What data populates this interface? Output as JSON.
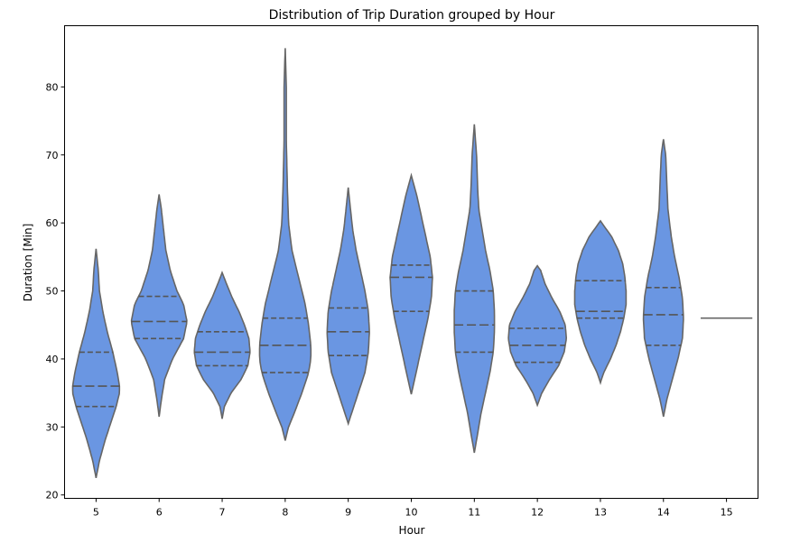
{
  "chart_data": {
    "type": "violin",
    "title": "Distribution of Trip Duration grouped by Hour",
    "xlabel": "Hour",
    "ylabel": "Duration [Min]",
    "ylim": [
      19.5,
      89
    ],
    "yticks": [
      20,
      30,
      40,
      50,
      60,
      70,
      80
    ],
    "categories": [
      "5",
      "6",
      "7",
      "8",
      "9",
      "10",
      "11",
      "12",
      "13",
      "14",
      "15"
    ],
    "fill_color": "#6a96e2",
    "edge_color": "#666666",
    "grid": false,
    "violins": [
      {
        "hour": "5",
        "min": 22.5,
        "max": 56.2,
        "q1": 33.0,
        "median": 36.0,
        "q3": 41.0,
        "profile": [
          [
            22.5,
            0
          ],
          [
            25,
            3
          ],
          [
            28,
            8
          ],
          [
            31,
            14
          ],
          [
            33,
            18
          ],
          [
            35,
            21
          ],
          [
            36,
            21
          ],
          [
            38,
            19
          ],
          [
            41,
            15
          ],
          [
            44,
            10
          ],
          [
            47,
            6
          ],
          [
            50,
            3
          ],
          [
            53,
            2
          ],
          [
            56.2,
            0
          ]
        ]
      },
      {
        "hour": "6",
        "min": 31.5,
        "max": 64.2,
        "q1": 43.0,
        "median": 45.5,
        "q3": 49.2,
        "profile": [
          [
            31.5,
            0
          ],
          [
            34,
            2
          ],
          [
            37,
            5
          ],
          [
            40,
            12
          ],
          [
            43,
            22
          ],
          [
            45.5,
            25
          ],
          [
            48,
            22
          ],
          [
            50,
            16
          ],
          [
            53,
            10
          ],
          [
            56,
            6
          ],
          [
            59,
            4
          ],
          [
            62,
            2
          ],
          [
            64.2,
            0
          ]
        ]
      },
      {
        "hour": "7",
        "min": 31.2,
        "max": 52.7,
        "q1": 39.0,
        "median": 41.0,
        "q3": 44.0,
        "profile": [
          [
            31.2,
            0
          ],
          [
            33,
            2
          ],
          [
            35,
            8
          ],
          [
            37,
            17
          ],
          [
            39,
            23
          ],
          [
            41,
            25
          ],
          [
            43,
            24
          ],
          [
            45,
            20
          ],
          [
            47,
            15
          ],
          [
            49,
            9
          ],
          [
            51,
            4
          ],
          [
            52.7,
            0
          ]
        ]
      },
      {
        "hour": "8",
        "min": 28.0,
        "max": 85.7,
        "q1": 38.0,
        "median": 42.0,
        "q3": 46.0,
        "profile": [
          [
            28,
            0
          ],
          [
            30,
            3
          ],
          [
            32,
            8
          ],
          [
            35,
            15
          ],
          [
            38,
            21
          ],
          [
            40,
            23
          ],
          [
            42,
            23
          ],
          [
            45,
            21
          ],
          [
            48,
            18
          ],
          [
            52,
            12
          ],
          [
            56,
            6
          ],
          [
            60,
            3
          ],
          [
            65,
            2
          ],
          [
            72,
            1
          ],
          [
            80,
            1
          ],
          [
            85.7,
            0
          ]
        ]
      },
      {
        "hour": "9",
        "min": 30.5,
        "max": 65.2,
        "q1": 40.5,
        "median": 44.0,
        "q3": 47.5,
        "profile": [
          [
            30.5,
            0
          ],
          [
            32,
            3
          ],
          [
            35,
            9
          ],
          [
            38,
            15
          ],
          [
            41,
            18
          ],
          [
            44,
            19
          ],
          [
            47,
            18
          ],
          [
            50,
            15
          ],
          [
            53,
            11
          ],
          [
            56,
            7
          ],
          [
            59,
            4
          ],
          [
            62,
            2
          ],
          [
            65.2,
            0
          ]
        ]
      },
      {
        "hour": "10",
        "min": 34.8,
        "max": 67.0,
        "q1": 47.0,
        "median": 52.0,
        "q3": 53.8,
        "profile": [
          [
            34.8,
            0
          ],
          [
            37,
            3
          ],
          [
            40,
            7
          ],
          [
            43,
            11
          ],
          [
            46,
            15
          ],
          [
            49,
            18
          ],
          [
            52,
            19
          ],
          [
            55,
            17
          ],
          [
            58,
            13
          ],
          [
            61,
            9
          ],
          [
            64,
            5
          ],
          [
            67,
            0
          ]
        ]
      },
      {
        "hour": "11",
        "min": 26.2,
        "max": 74.5,
        "q1": 41.0,
        "median": 45.0,
        "q3": 50.0,
        "profile": [
          [
            26.2,
            0
          ],
          [
            29,
            3
          ],
          [
            32,
            6
          ],
          [
            35,
            10
          ],
          [
            38,
            14
          ],
          [
            41,
            17
          ],
          [
            44,
            18
          ],
          [
            47,
            18
          ],
          [
            50,
            17
          ],
          [
            53,
            14
          ],
          [
            56,
            10
          ],
          [
            59,
            7
          ],
          [
            62,
            4
          ],
          [
            65,
            3
          ],
          [
            70,
            2
          ],
          [
            74.5,
            0
          ]
        ]
      },
      {
        "hour": "12",
        "min": 33.2,
        "max": 53.7,
        "q1": 39.5,
        "median": 42.0,
        "q3": 44.5,
        "profile": [
          [
            33.2,
            0
          ],
          [
            35,
            4
          ],
          [
            37,
            11
          ],
          [
            39,
            19
          ],
          [
            41,
            24
          ],
          [
            43,
            26
          ],
          [
            45,
            25
          ],
          [
            47,
            20
          ],
          [
            49,
            13
          ],
          [
            51,
            7
          ],
          [
            53,
            3
          ],
          [
            53.7,
            0
          ]
        ]
      },
      {
        "hour": "13",
        "min": 36.5,
        "max": 60.3,
        "q1": 46.0,
        "median": 47.0,
        "q3": 51.5,
        "profile": [
          [
            36.5,
            0
          ],
          [
            38,
            3
          ],
          [
            40,
            9
          ],
          [
            42,
            14
          ],
          [
            44,
            18
          ],
          [
            46,
            21
          ],
          [
            48,
            23
          ],
          [
            50,
            23
          ],
          [
            52,
            22
          ],
          [
            54,
            20
          ],
          [
            56,
            16
          ],
          [
            58,
            10
          ],
          [
            60.3,
            0
          ]
        ]
      },
      {
        "hour": "14",
        "min": 31.5,
        "max": 72.3,
        "q1": 42.0,
        "median": 46.5,
        "q3": 50.5,
        "profile": [
          [
            31.5,
            0
          ],
          [
            34,
            3
          ],
          [
            37,
            8
          ],
          [
            40,
            13
          ],
          [
            43,
            17
          ],
          [
            46,
            18
          ],
          [
            49,
            17
          ],
          [
            52,
            14
          ],
          [
            55,
            10
          ],
          [
            58,
            7
          ],
          [
            62,
            4
          ],
          [
            66,
            3
          ],
          [
            70,
            2
          ],
          [
            72.3,
            0
          ]
        ]
      },
      {
        "hour": "15",
        "value": 46.0
      }
    ]
  }
}
